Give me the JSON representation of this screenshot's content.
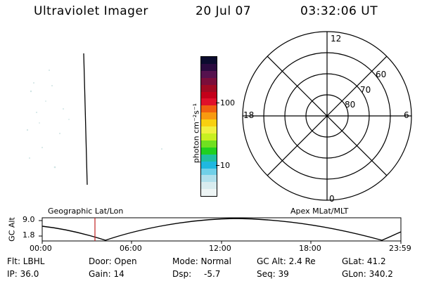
{
  "header": {
    "instrument": "Ultraviolet Imager",
    "date": "20 Jul 07",
    "time": "03:32:06 UT"
  },
  "colorbar": {
    "unit_label": "photon cm⁻²s⁻¹",
    "tick_high": "100",
    "tick_low": "10",
    "colors": [
      "#0b0b2e",
      "#2a0a3f",
      "#55124e",
      "#7a0e3a",
      "#a00a22",
      "#c4001a",
      "#e0102a",
      "#f06010",
      "#f89a10",
      "#f8d010",
      "#f0f040",
      "#c8f020",
      "#70e020",
      "#20d020",
      "#20c0a0",
      "#20b8e0",
      "#70d0e8",
      "#b0e0ec",
      "#d8ecef",
      "#eef5f5"
    ]
  },
  "polar": {
    "lat_labels": [
      "60",
      "70",
      "80"
    ],
    "mlt_labels": {
      "top": "12",
      "bottom": "0",
      "left": "18",
      "right": "6"
    }
  },
  "timeline": {
    "left_label": "Geographic Lat/Lon",
    "right_label": "Apex MLat/MLT",
    "y_axis_label": "GC Alt",
    "y_top": "9.0",
    "y_bottom": "1.8",
    "x_ticks": [
      "00:00",
      "06:00",
      "12:00",
      "18:00",
      "23:59"
    ]
  },
  "info": {
    "flt": "Flt: LBHL",
    "ip": "IP: 36.0",
    "door": "Door: Open",
    "gain": "Gain: 14",
    "mode": "Mode: Normal",
    "dsp_label": "Dsp:",
    "dsp_value": "-5.7",
    "gc_alt": "GC Alt: 2.4 Re",
    "seq": "Seq: 39",
    "glat": "GLat: 41.2",
    "glon": "GLon: 340.2"
  },
  "colors": {
    "marker": "#c02020"
  }
}
